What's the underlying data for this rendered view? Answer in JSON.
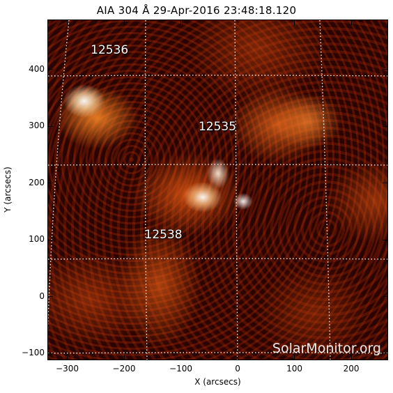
{
  "title": "AIA 304 Å 29-Apr-2016 23:48:18.120",
  "x_axis": {
    "label": "X (arcsecs)",
    "range": [
      -335,
      265
    ],
    "ticks": [
      -300,
      -200,
      -100,
      0,
      100,
      200
    ],
    "tick_labels": [
      "−300",
      "−200",
      "−100",
      "0",
      "100",
      "200"
    ]
  },
  "y_axis": {
    "label": "Y (arcsecs)",
    "range": [
      -112,
      488
    ],
    "ticks": [
      -100,
      0,
      100,
      200,
      300,
      400
    ],
    "tick_labels": [
      "−100",
      "0",
      "100",
      "200",
      "300",
      "400"
    ]
  },
  "active_regions": [
    {
      "label": "12536",
      "x": -260,
      "y": 435
    },
    {
      "label": "12535",
      "x": -70,
      "y": 300
    },
    {
      "label": "12538",
      "x": -165,
      "y": 110
    }
  ],
  "watermark": "SolarMonitor.org",
  "colors": {
    "background": "#2a0400",
    "grid": "#ffffff",
    "label_text": "#ffffff"
  }
}
